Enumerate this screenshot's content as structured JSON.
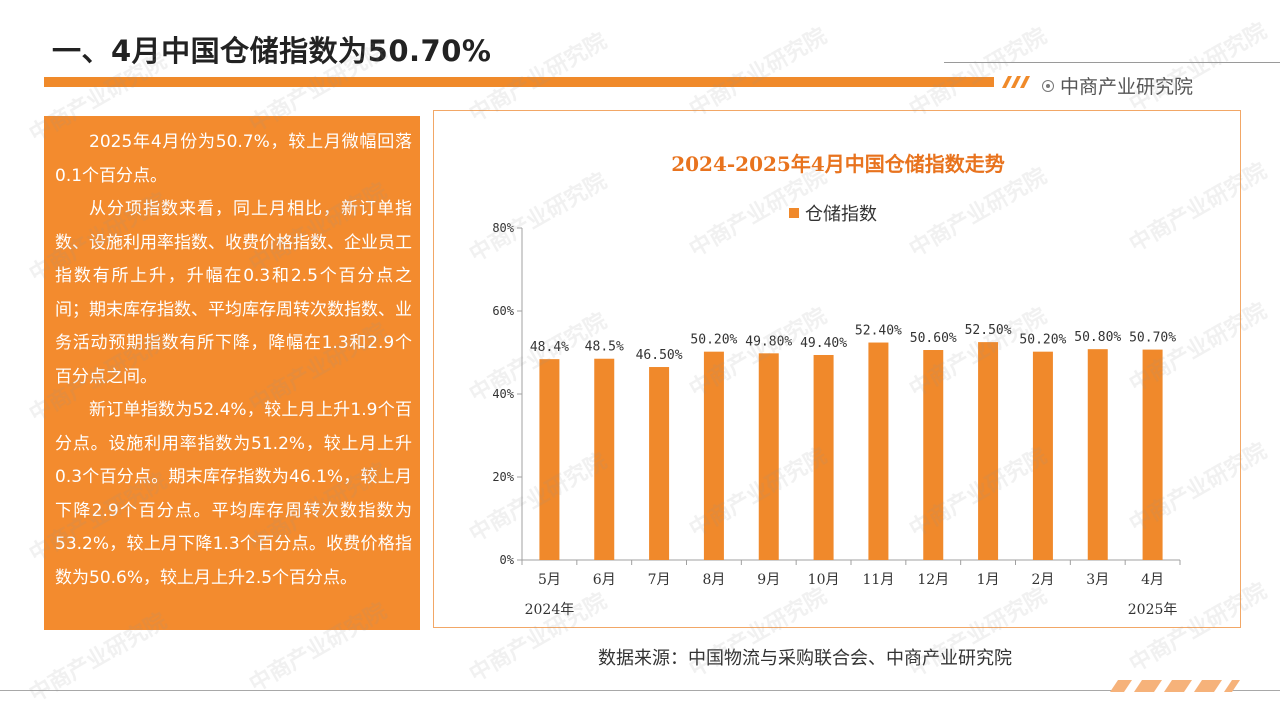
{
  "title": "一、4月中国仓储指数为50.70%",
  "brand": "中商产业研究院",
  "paragraphs": [
    "2025年4月份为50.7%，较上月微幅回落0.1个百分点。",
    "从分项指数来看，同上月相比，新订单指数、设施利用率指数、收费价格指数、企业员工指数有所上升，升幅在0.3和2.5个百分点之间；期末库存指数、平均库存周转次数指数、业务活动预期指数有所下降，降幅在1.3和2.9个百分点之间。",
    "新订单指数为52.4%，较上月上升1.9个百分点。设施利用率指数为51.2%，较上月上升0.3个百分点。期末库存指数为46.1%，较上月下降2.9个百分点。平均库存周转次数指数为53.2%，较上月下降1.3个百分点。收费价格指数为50.6%，较上月上升2.5个百分点。"
  ],
  "source": "数据来源：中国物流与采购联合会、中商产业研究院",
  "watermark": "中商产业研究院",
  "colors": {
    "accent": "#f08a2a",
    "bar": "#f0892b",
    "title": "#e8731e"
  },
  "chart_data": {
    "type": "bar",
    "title": "2024-2025年4月中国仓储指数走势",
    "categories": [
      "5月",
      "6月",
      "7月",
      "8月",
      "9月",
      "10月",
      "11月",
      "12月",
      "1月",
      "2月",
      "3月",
      "4月"
    ],
    "year_labels": {
      "start": "2024年",
      "end": "2025年"
    },
    "series": [
      {
        "name": "仓储指数",
        "values": [
          48.4,
          48.5,
          46.5,
          50.2,
          49.8,
          49.4,
          52.4,
          50.6,
          52.5,
          50.2,
          50.8,
          50.7
        ],
        "labels": [
          "48.4%",
          "48.5%",
          "46.50%",
          "50.20%",
          "49.80%",
          "49.40%",
          "52.40%",
          "50.60%",
          "52.50%",
          "50.20%",
          "50.80%",
          "50.70%"
        ]
      }
    ],
    "yticks": [
      "0%",
      "20%",
      "40%",
      "60%",
      "80%"
    ],
    "ylim": [
      0,
      80
    ],
    "legend": "top-center",
    "grid": false
  }
}
